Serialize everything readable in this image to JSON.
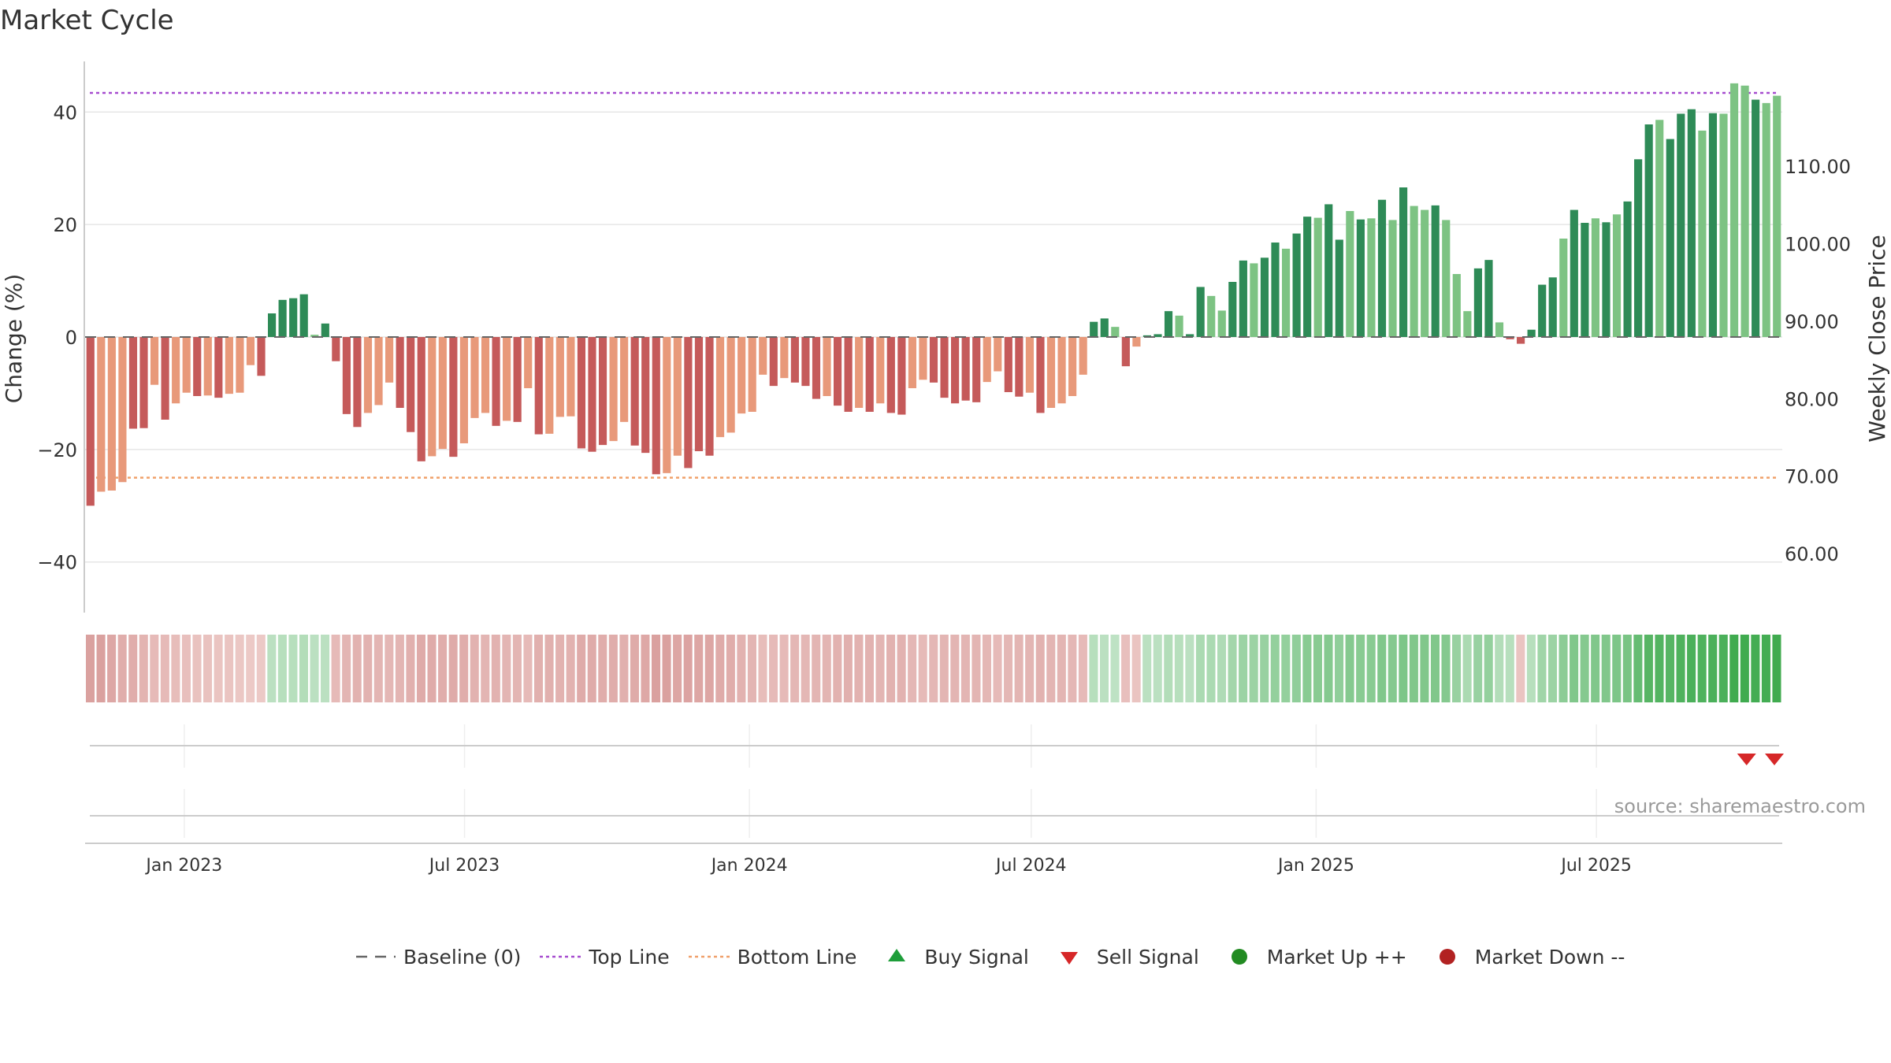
{
  "title": "Market Cycle",
  "source": "source: sharemaestro.com",
  "colors": {
    "pos_dark": "#2e8b57",
    "pos_light": "#7dc383",
    "neg_dark": "#c55a5a",
    "neg_light": "#e8997a",
    "top_line": "#a64ccf",
    "bottom_line": "#f0a06a",
    "baseline": "#666666",
    "buy": "#1e9e3a",
    "sell": "#d62728",
    "market_up": "#228b22",
    "market_down": "#b22222",
    "grid": "#e6e6e6"
  },
  "legend": [
    {
      "label": "Baseline (0)",
      "icon": "dash-line"
    },
    {
      "label": "Top Line",
      "icon": "dotted-purple-line"
    },
    {
      "label": "Bottom Line",
      "icon": "dotted-orange-line"
    },
    {
      "label": "Buy Signal",
      "icon": "triangle-up"
    },
    {
      "label": "Sell Signal",
      "icon": "triangle-down"
    },
    {
      "label": "Market Up ++",
      "icon": "green-dot"
    },
    {
      "label": "Market Down --",
      "icon": "red-dot"
    }
  ],
  "chart_data": {
    "type": "bar",
    "title": "Market Cycle",
    "ylabel": "Change (%)",
    "y2label": "Weekly Close Price",
    "ylim": [
      -49,
      49
    ],
    "y2lim": [
      52.4,
      123.5
    ],
    "yticks": [
      40,
      20,
      0,
      -20,
      -40
    ],
    "yticklabels": [
      "40",
      "20",
      "0",
      "−20",
      "−40"
    ],
    "y2ticks": [
      110,
      100,
      90,
      80,
      70,
      60
    ],
    "y2ticklabels": [
      "110.00",
      "100.00",
      "90.00",
      "80.00",
      "70.00",
      "60.00"
    ],
    "x_start": "2022-10-31",
    "x_end": "2025-10-27",
    "x_ticks": [
      "2023-01-01",
      "2023-07-01",
      "2024-01-01",
      "2024-07-01",
      "2025-01-01",
      "2025-07-01"
    ],
    "xticklabels": [
      "Jan 2023",
      "Jul 2023",
      "Jan 2024",
      "Jul 2024",
      "Jan 2025",
      "Jul 2025"
    ],
    "top_line": 43.4,
    "bottom_line": -25,
    "baseline": 0,
    "grid": true,
    "legend_position": "bottom",
    "values": [
      -30,
      -27.5,
      -27.3,
      -25.8,
      -16.3,
      -16.2,
      -8.5,
      -14.7,
      -11.8,
      -9.9,
      -10.5,
      -10.4,
      -10.8,
      -10.1,
      -9.9,
      -5,
      -6.9,
      4.2,
      6.6,
      6.9,
      7.6,
      0.4,
      2.4,
      -4.3,
      -13.7,
      -16,
      -13.5,
      -12.1,
      -8.1,
      -12.6,
      -16.9,
      -22.1,
      -21.2,
      -19.9,
      -21.3,
      -18.9,
      -14.4,
      -13.5,
      -15.8,
      -14.9,
      -15.1,
      -9.1,
      -17.3,
      -17.2,
      -14.2,
      -14.1,
      -19.8,
      -20.4,
      -19.2,
      -18.5,
      -15.1,
      -19.3,
      -20.6,
      -24.4,
      -24.2,
      -21.1,
      -23.3,
      -20.3,
      -21.1,
      -17.8,
      -17,
      -13.6,
      -13.3,
      -6.7,
      -8.7,
      -7.3,
      -8.1,
      -8.7,
      -11,
      -10.5,
      -12.2,
      -13.3,
      -12.6,
      -13.3,
      -11.8,
      -13.5,
      -13.8,
      -9.1,
      -7.6,
      -8.1,
      -10.8,
      -11.8,
      -11.3,
      -11.6,
      -8,
      -6.1,
      -9.8,
      -10.6,
      -9.9,
      -13.5,
      -12.6,
      -11.8,
      -10.5,
      -6.7,
      2.7,
      3.3,
      1.8,
      -5.2,
      -1.7,
      0.3,
      0.5,
      4.6,
      3.8,
      0.5,
      8.9,
      7.3,
      4.7,
      9.8,
      13.6,
      13.1,
      14.1,
      16.8,
      15.7,
      18.4,
      21.4,
      21.2,
      23.6,
      17.3,
      22.4,
      20.9,
      21.1,
      24.4,
      20.8,
      26.6,
      23.3,
      22.6,
      23.4,
      20.8,
      11.2,
      4.6,
      12.2,
      13.7,
      2.6,
      -0.4,
      -1.2,
      1.3,
      9.3,
      10.6,
      17.5,
      22.6,
      20.3,
      21.1,
      20.4,
      21.8,
      24.1,
      31.6,
      37.8,
      38.6,
      35.2,
      39.7,
      40.5,
      36.7,
      39.8,
      39.7,
      45.1,
      44.7,
      42.2,
      41.6,
      42.9
    ],
    "shades": [
      "d",
      "l",
      "l",
      "l",
      "d",
      "d",
      "l",
      "d",
      "l",
      "l",
      "d",
      "l",
      "d",
      "l",
      "l",
      "l",
      "d",
      "d",
      "d",
      "d",
      "d",
      "l",
      "d",
      "d",
      "d",
      "d",
      "l",
      "l",
      "l",
      "d",
      "d",
      "d",
      "l",
      "l",
      "d",
      "l",
      "l",
      "l",
      "d",
      "l",
      "d",
      "l",
      "d",
      "l",
      "l",
      "l",
      "d",
      "d",
      "d",
      "l",
      "l",
      "d",
      "d",
      "d",
      "l",
      "l",
      "d",
      "d",
      "d",
      "l",
      "l",
      "l",
      "l",
      "l",
      "d",
      "l",
      "d",
      "d",
      "d",
      "l",
      "d",
      "d",
      "l",
      "d",
      "l",
      "d",
      "d",
      "l",
      "l",
      "d",
      "d",
      "d",
      "d",
      "d",
      "l",
      "l",
      "d",
      "d",
      "l",
      "d",
      "l",
      "l",
      "l",
      "l",
      "d",
      "d",
      "l",
      "d",
      "l",
      "d",
      "d",
      "d",
      "l",
      "d",
      "d",
      "l",
      "l",
      "d",
      "d",
      "l",
      "d",
      "d",
      "l",
      "d",
      "d",
      "l",
      "d",
      "d",
      "l",
      "d",
      "l",
      "d",
      "l",
      "d",
      "l",
      "l",
      "d",
      "l",
      "l",
      "l",
      "d",
      "d",
      "l",
      "d",
      "d",
      "d",
      "d",
      "d",
      "l",
      "d",
      "d",
      "l",
      "d",
      "l",
      "d",
      "d",
      "d",
      "l",
      "d",
      "d",
      "d",
      "l",
      "d",
      "l",
      "l",
      "l",
      "d"
    ],
    "prices": [
      null,
      null,
      null,
      null,
      null,
      null,
      null,
      null,
      null,
      null,
      null,
      null,
      null,
      null,
      null,
      null,
      null,
      null,
      null,
      null,
      null,
      null,
      null,
      null,
      null,
      null,
      null,
      null,
      null,
      null,
      null,
      null,
      null,
      null,
      null,
      null,
      null,
      null,
      null,
      null,
      null,
      null,
      null,
      null,
      null,
      null,
      null,
      null,
      null,
      null,
      null,
      null,
      null,
      null,
      null,
      null,
      null,
      null,
      null,
      null,
      null,
      null,
      null,
      null,
      null,
      null,
      null,
      null,
      null,
      null,
      null,
      null,
      null,
      null,
      null,
      null,
      null,
      null,
      null,
      null,
      null,
      null,
      null,
      null,
      null,
      null,
      null,
      null,
      null,
      null,
      null,
      null,
      null,
      null,
      null,
      null,
      null,
      null,
      null,
      null,
      null,
      null,
      null,
      null,
      null,
      null,
      null,
      null,
      null,
      null,
      null,
      null,
      null,
      null,
      null,
      null,
      null,
      null,
      null,
      null,
      null,
      null,
      null,
      null,
      null,
      null,
      null,
      null,
      null,
      null,
      null,
      null,
      null,
      null,
      null,
      null,
      null,
      null,
      null,
      null,
      null,
      null,
      null,
      null,
      null,
      null,
      null,
      null,
      null,
      null,
      null,
      null,
      null,
      null,
      null,
      null,
      null,
      null,
      null,
      null,
      null
    ],
    "heat": [
      0.5,
      0.5,
      0.45,
      0.4,
      0.4,
      0.35,
      0.3,
      0.3,
      0.28,
      0.26,
      0.24,
      0.24,
      0.22,
      0.22,
      0.2,
      0.18,
      0.18,
      0.22,
      0.24,
      0.24,
      0.26,
      0.22,
      0.22,
      0.3,
      0.34,
      0.36,
      0.36,
      0.34,
      0.32,
      0.34,
      0.38,
      0.42,
      0.42,
      0.4,
      0.42,
      0.4,
      0.36,
      0.34,
      0.36,
      0.34,
      0.34,
      0.3,
      0.38,
      0.38,
      0.36,
      0.36,
      0.42,
      0.42,
      0.4,
      0.4,
      0.38,
      0.42,
      0.44,
      0.5,
      0.5,
      0.46,
      0.48,
      0.46,
      0.46,
      0.42,
      0.4,
      0.36,
      0.34,
      0.28,
      0.3,
      0.3,
      0.32,
      0.32,
      0.34,
      0.34,
      0.36,
      0.38,
      0.36,
      0.36,
      0.34,
      0.36,
      0.36,
      0.32,
      0.3,
      0.32,
      0.34,
      0.34,
      0.34,
      0.34,
      0.32,
      0.3,
      0.32,
      0.34,
      0.34,
      0.36,
      0.34,
      0.34,
      0.32,
      0.3,
      0.24,
      0.22,
      0.2,
      0.26,
      0.22,
      0.22,
      0.22,
      0.26,
      0.24,
      0.22,
      0.3,
      0.3,
      0.28,
      0.34,
      0.38,
      0.38,
      0.4,
      0.42,
      0.42,
      0.44,
      0.48,
      0.48,
      0.5,
      0.44,
      0.5,
      0.48,
      0.48,
      0.52,
      0.5,
      0.54,
      0.52,
      0.52,
      0.52,
      0.5,
      0.4,
      0.3,
      0.4,
      0.42,
      0.26,
      0.24,
      0.22,
      0.24,
      0.36,
      0.38,
      0.46,
      0.52,
      0.5,
      0.52,
      0.52,
      0.54,
      0.56,
      0.66,
      0.74,
      0.76,
      0.74,
      0.78,
      0.8,
      0.78,
      0.8,
      0.8,
      0.86,
      0.86,
      0.84,
      0.84,
      0.86
    ],
    "heat_sign": [
      -1,
      -1,
      -1,
      -1,
      -1,
      -1,
      -1,
      -1,
      -1,
      -1,
      -1,
      -1,
      -1,
      -1,
      -1,
      -1,
      -1,
      1,
      1,
      1,
      1,
      1,
      1,
      -1,
      -1,
      -1,
      -1,
      -1,
      -1,
      -1,
      -1,
      -1,
      -1,
      -1,
      -1,
      -1,
      -1,
      -1,
      -1,
      -1,
      -1,
      -1,
      -1,
      -1,
      -1,
      -1,
      -1,
      -1,
      -1,
      -1,
      -1,
      -1,
      -1,
      -1,
      -1,
      -1,
      -1,
      -1,
      -1,
      -1,
      -1,
      -1,
      -1,
      -1,
      -1,
      -1,
      -1,
      -1,
      -1,
      -1,
      -1,
      -1,
      -1,
      -1,
      -1,
      -1,
      -1,
      -1,
      -1,
      -1,
      -1,
      -1,
      -1,
      -1,
      -1,
      -1,
      -1,
      -1,
      -1,
      -1,
      -1,
      -1,
      -1,
      -1,
      1,
      1,
      1,
      -1,
      -1,
      1,
      1,
      1,
      1,
      1,
      1,
      1,
      1,
      1,
      1,
      1,
      1,
      1,
      1,
      1,
      1,
      1,
      1,
      1,
      1,
      1,
      1,
      1,
      1,
      1,
      1,
      1,
      1,
      1,
      1,
      1,
      1,
      1,
      1,
      1,
      -1,
      1,
      1,
      1,
      1,
      1,
      1,
      1,
      1,
      1,
      1,
      1,
      1,
      1,
      1,
      1,
      1,
      1,
      1,
      1,
      1,
      1,
      1,
      1,
      1,
      1,
      1,
      1
    ],
    "sell_signals": [
      "2025-10-06",
      "2025-10-27"
    ],
    "buy_signals": []
  }
}
